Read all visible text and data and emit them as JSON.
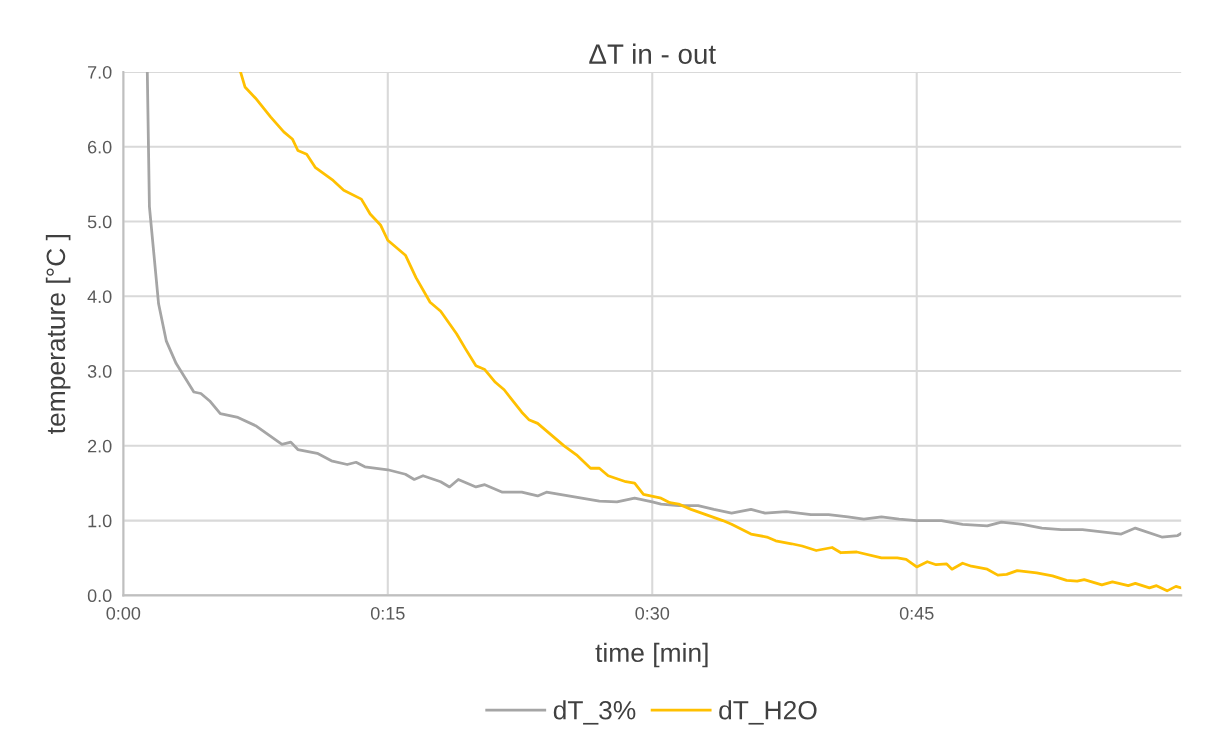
{
  "chart_data": {
    "type": "line",
    "title": "ΔT in - out",
    "xlabel": "time [min]",
    "ylabel": "temperature [°C ]",
    "xlim": [
      0,
      60
    ],
    "xticks": [
      {
        "value": 0,
        "label": "0:00"
      },
      {
        "value": 15,
        "label": "0:15"
      },
      {
        "value": 30,
        "label": "0:30"
      },
      {
        "value": 45,
        "label": "0:45"
      }
    ],
    "ylim": [
      0,
      7
    ],
    "yticks": [
      {
        "value": 0,
        "label": "0.0"
      },
      {
        "value": 1,
        "label": "1.0"
      },
      {
        "value": 2,
        "label": "2.0"
      },
      {
        "value": 3,
        "label": "3.0"
      },
      {
        "value": 4,
        "label": "4.0"
      },
      {
        "value": 5,
        "label": "5.0"
      },
      {
        "value": 6,
        "label": "6.0"
      },
      {
        "value": 7,
        "label": "7.0"
      }
    ],
    "grid": true,
    "legend": "bottom",
    "marker": "none",
    "line_style": "solid",
    "series": [
      {
        "name": "dT_3%",
        "color": "#a5a5a5",
        "x": [
          1.36,
          1.48,
          2.0,
          2.44,
          3.0,
          4.0,
          4.4,
          4.9,
          5.5,
          6.5,
          7.5,
          9.0,
          9.5,
          9.9,
          11.0,
          11.8,
          12.7,
          13.2,
          13.7,
          15.0,
          16.0,
          16.5,
          17.0,
          18.0,
          18.5,
          19.0,
          20.0,
          20.5,
          21.5,
          22.6,
          23.5,
          24.0,
          25.5,
          27.0,
          28.0,
          29.0,
          30.0,
          30.5,
          31.5,
          32.6,
          33.5,
          34.5,
          35.6,
          36.4,
          37.6,
          39.0,
          40.0,
          41.1,
          42.0,
          43.0,
          44.0,
          45.0,
          46.4,
          47.6,
          49.0,
          49.8,
          51.0,
          52.1,
          53.2,
          54.4,
          55.5,
          56.6,
          57.4,
          58.9,
          59.8,
          60.0
        ],
        "values": [
          7.0,
          5.2,
          3.9,
          3.4,
          3.1,
          2.72,
          2.7,
          2.6,
          2.43,
          2.38,
          2.27,
          2.02,
          2.05,
          1.95,
          1.9,
          1.8,
          1.75,
          1.78,
          1.72,
          1.68,
          1.62,
          1.55,
          1.6,
          1.52,
          1.45,
          1.55,
          1.45,
          1.48,
          1.38,
          1.38,
          1.33,
          1.38,
          1.32,
          1.26,
          1.25,
          1.3,
          1.25,
          1.22,
          1.2,
          1.2,
          1.15,
          1.1,
          1.15,
          1.1,
          1.12,
          1.08,
          1.08,
          1.05,
          1.02,
          1.05,
          1.02,
          1.0,
          1.0,
          0.95,
          0.93,
          0.98,
          0.95,
          0.9,
          0.88,
          0.88,
          0.85,
          0.82,
          0.9,
          0.78,
          0.8,
          0.83
        ]
      },
      {
        "name": "dT_H2O",
        "color": "#ffc000",
        "x": [
          6.65,
          6.9,
          7.5,
          8.35,
          9.1,
          9.6,
          9.9,
          10.4,
          10.9,
          11.9,
          12.5,
          13.5,
          14.0,
          14.6,
          15.0,
          16.0,
          16.6,
          17.4,
          18.0,
          18.9,
          19.4,
          20.0,
          20.5,
          21.1,
          21.6,
          22.6,
          23.0,
          23.5,
          25.0,
          25.7,
          26.5,
          27.0,
          27.5,
          28.5,
          29.0,
          29.5,
          30.5,
          31.0,
          31.5,
          32.2,
          32.8,
          34.0,
          34.5,
          35.6,
          36.5,
          37.0,
          37.9,
          38.5,
          39.3,
          40.2,
          40.7,
          41.6,
          43.0,
          43.9,
          44.4,
          45.0,
          45.6,
          46.1,
          46.7,
          47.0,
          47.6,
          48.1,
          49.0,
          49.6,
          50.1,
          50.7,
          51.8,
          52.7,
          53.5,
          54.1,
          54.5,
          55.5,
          56.1,
          57.0,
          57.4,
          58.2,
          58.6,
          59.2,
          59.7,
          60.0
        ],
        "values": [
          7.0,
          6.8,
          6.65,
          6.4,
          6.2,
          6.1,
          5.95,
          5.9,
          5.72,
          5.55,
          5.42,
          5.3,
          5.1,
          4.95,
          4.75,
          4.55,
          4.25,
          3.92,
          3.8,
          3.5,
          3.3,
          3.07,
          3.02,
          2.85,
          2.75,
          2.45,
          2.35,
          2.3,
          2.0,
          1.88,
          1.7,
          1.7,
          1.6,
          1.52,
          1.5,
          1.35,
          1.3,
          1.24,
          1.22,
          1.15,
          1.1,
          1.0,
          0.95,
          0.82,
          0.78,
          0.73,
          0.69,
          0.66,
          0.6,
          0.64,
          0.57,
          0.58,
          0.5,
          0.5,
          0.48,
          0.38,
          0.45,
          0.41,
          0.42,
          0.35,
          0.43,
          0.39,
          0.35,
          0.27,
          0.28,
          0.33,
          0.3,
          0.26,
          0.2,
          0.19,
          0.21,
          0.14,
          0.18,
          0.13,
          0.16,
          0.1,
          0.13,
          0.06,
          0.12,
          0.1
        ]
      }
    ]
  }
}
